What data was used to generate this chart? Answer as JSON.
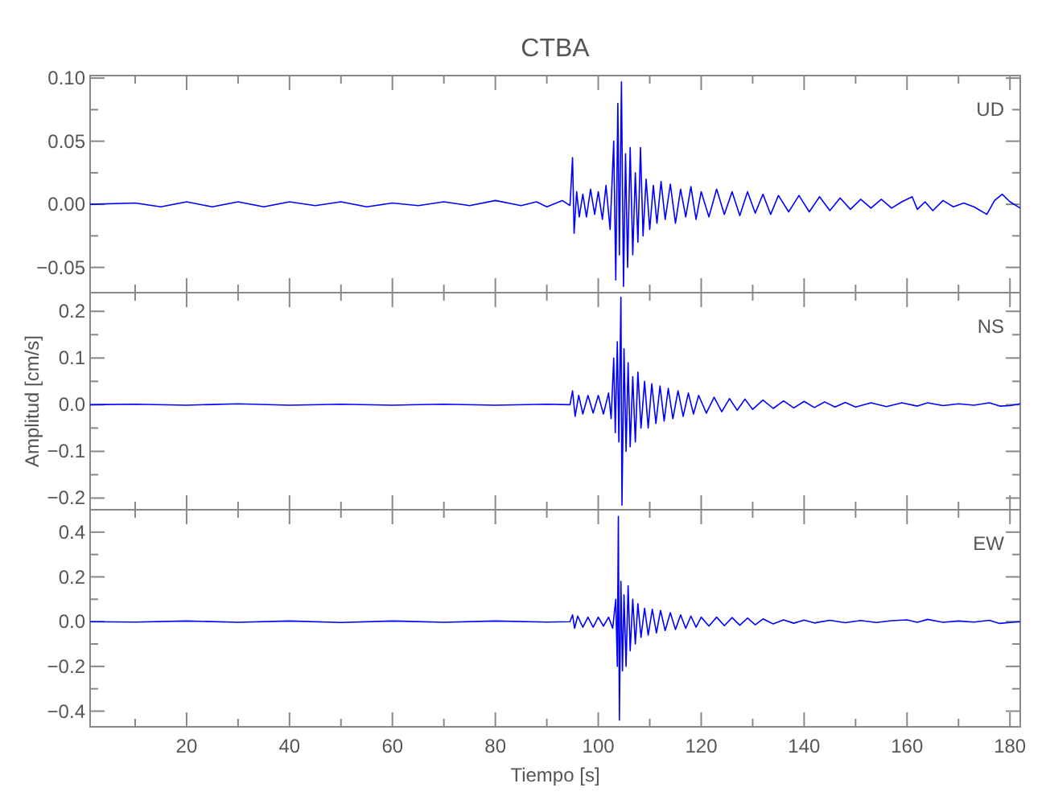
{
  "chart_data": [
    {
      "type": "line",
      "title": "CTBA",
      "annotations": [
        "UD"
      ],
      "tick_labels": "y",
      "grid": false,
      "xlim": [
        1.25,
        182
      ],
      "xticks": [
        {
          "value": 10,
          "label": null
        },
        20,
        {
          "value": 30,
          "label": null
        },
        40,
        {
          "value": 50,
          "label": null
        },
        60,
        {
          "value": 70,
          "label": null
        },
        80,
        {
          "value": 90,
          "label": null
        },
        100,
        {
          "value": 110,
          "label": null
        },
        120,
        {
          "value": 130,
          "label": null
        },
        140,
        {
          "value": 150,
          "label": null
        },
        160,
        {
          "value": 170,
          "label": null
        },
        180
      ],
      "ylim": [
        -0.07,
        0.102
      ],
      "yticks": [
        {
          "value": -0.05,
          "label": "−0.05"
        },
        {
          "value": -0.025,
          "label": null
        },
        {
          "value": 0,
          "label": "0.00"
        },
        {
          "value": 0.025,
          "label": null
        },
        {
          "value": 0.05,
          "label": "0.05"
        },
        {
          "value": 0.075,
          "label": null
        },
        {
          "value": 0.1,
          "label": "0.10"
        }
      ],
      "series": [
        {
          "color": "#0000ff",
          "x": [
            1.25,
            10,
            15,
            20,
            25,
            30,
            35,
            40,
            45,
            50,
            55,
            60,
            65,
            70,
            75,
            80,
            85,
            88,
            90,
            93,
            94.5,
            95,
            95.3,
            95.8,
            96.3,
            97,
            97.7,
            98.5,
            99.3,
            100,
            100.8,
            101.5,
            102.3,
            103,
            103.4,
            103.8,
            104.1,
            104.5,
            104.9,
            105.3,
            105.7,
            106.2,
            106.7,
            107.2,
            107.7,
            108.2,
            108.7,
            109.3,
            110,
            110.7,
            111.4,
            112.2,
            113,
            114,
            115,
            116,
            117,
            118,
            119,
            120,
            121.5,
            123,
            124.5,
            126,
            127.5,
            129,
            130.5,
            132,
            133.5,
            135,
            137,
            139,
            141,
            143,
            145,
            147,
            149,
            151,
            153,
            155,
            157,
            159,
            161,
            162,
            163.5,
            165,
            167,
            169,
            171,
            173,
            175.5,
            177,
            178.5,
            180,
            182
          ],
          "values": [
            0,
            0.001,
            -0.002,
            0.002,
            -0.002,
            0.002,
            -0.002,
            0.002,
            -0.001,
            0.002,
            -0.002,
            0.001,
            -0.001,
            0.002,
            -0.001,
            0.003,
            -0.001,
            0.002,
            -0.002,
            0.003,
            -0.001,
            0.037,
            -0.023,
            0.01,
            -0.01,
            0.008,
            -0.01,
            0.012,
            -0.008,
            0.01,
            -0.012,
            0.015,
            -0.02,
            0.05,
            -0.06,
            0.08,
            -0.04,
            0.097,
            -0.065,
            0.04,
            -0.05,
            0.045,
            -0.04,
            0.025,
            -0.03,
            0.045,
            -0.025,
            0.02,
            -0.02,
            0.015,
            -0.015,
            0.018,
            -0.012,
            0.016,
            -0.015,
            0.012,
            -0.01,
            0.014,
            -0.012,
            0.01,
            -0.01,
            0.012,
            -0.008,
            0.01,
            -0.009,
            0.01,
            -0.007,
            0.008,
            -0.008,
            0.007,
            -0.006,
            0.007,
            -0.006,
            0.006,
            -0.005,
            0.005,
            -0.004,
            0.004,
            -0.003,
            0.004,
            -0.003,
            0.002,
            0.006,
            -0.004,
            0.002,
            -0.005,
            0.003,
            -0.002,
            0.001,
            -0.002,
            -0.008,
            0.003,
            0.008,
            0.002,
            -0.003
          ]
        }
      ]
    },
    {
      "type": "line",
      "ylabel": "Amplitud [cm/s]",
      "annotations": [
        "NS"
      ],
      "tick_labels": "y",
      "grid": false,
      "xlim": [
        1.25,
        182
      ],
      "xticks": [
        {
          "value": 10,
          "label": null
        },
        20,
        {
          "value": 30,
          "label": null
        },
        40,
        {
          "value": 50,
          "label": null
        },
        60,
        {
          "value": 70,
          "label": null
        },
        80,
        {
          "value": 90,
          "label": null
        },
        100,
        {
          "value": 110,
          "label": null
        },
        120,
        {
          "value": 130,
          "label": null
        },
        140,
        {
          "value": 150,
          "label": null
        },
        160,
        {
          "value": 170,
          "label": null
        },
        180
      ],
      "ylim": [
        -0.225,
        0.24
      ],
      "yticks": [
        {
          "value": -0.2,
          "label": "−0.2"
        },
        {
          "value": -0.15,
          "label": null
        },
        {
          "value": -0.1,
          "label": "−0.1"
        },
        {
          "value": -0.05,
          "label": null
        },
        {
          "value": 0,
          "label": "0.0"
        },
        {
          "value": 0.05,
          "label": null
        },
        {
          "value": 0.1,
          "label": "0.1"
        },
        {
          "value": 0.15,
          "label": null
        },
        {
          "value": 0.2,
          "label": "0.2"
        }
      ],
      "series": [
        {
          "color": "#0000ff",
          "x": [
            1.25,
            10,
            20,
            30,
            40,
            50,
            60,
            70,
            80,
            90,
            94.5,
            95,
            95.5,
            96.2,
            97,
            98,
            99,
            100,
            101,
            102,
            102.5,
            103,
            103.3,
            103.7,
            104,
            104.4,
            104.6,
            105,
            105.4,
            105.8,
            106.2,
            106.7,
            107.2,
            107.7,
            108.3,
            109,
            109.7,
            110.4,
            111.2,
            112,
            112.8,
            113.6,
            114.5,
            115.5,
            116.5,
            117.5,
            118.5,
            119.5,
            121,
            122.5,
            124,
            125.5,
            127,
            128.5,
            130,
            132,
            134,
            136,
            138,
            140,
            142,
            144,
            146,
            148,
            150,
            153,
            156,
            159,
            162,
            164,
            167,
            170,
            173,
            176,
            178,
            180,
            182
          ],
          "values": [
            0,
            0.001,
            -0.001,
            0.002,
            -0.001,
            0.001,
            -0.001,
            0.001,
            -0.001,
            0.001,
            0,
            0.03,
            -0.025,
            0.02,
            -0.02,
            0.02,
            -0.018,
            0.02,
            -0.02,
            0.025,
            -0.03,
            0.1,
            -0.06,
            0.135,
            -0.08,
            0.23,
            -0.215,
            0.12,
            -0.1,
            0.09,
            -0.09,
            0.06,
            -0.08,
            0.07,
            -0.05,
            0.05,
            -0.05,
            0.045,
            -0.04,
            0.04,
            -0.035,
            0.035,
            -0.03,
            0.03,
            -0.025,
            0.025,
            -0.02,
            0.02,
            -0.018,
            0.016,
            -0.015,
            0.013,
            -0.012,
            0.012,
            -0.01,
            0.01,
            -0.008,
            0.008,
            -0.007,
            0.007,
            -0.006,
            0.006,
            -0.005,
            0.005,
            -0.005,
            0.004,
            -0.004,
            0.004,
            -0.003,
            0.004,
            -0.002,
            0.002,
            -0.001,
            0.004,
            -0.003,
            -0.002,
            0.002
          ]
        }
      ]
    },
    {
      "type": "line",
      "xlabel": "Tiempo [s]",
      "annotations": [
        "EW"
      ],
      "grid": false,
      "xlim": [
        1.25,
        182
      ],
      "xticks": [
        {
          "value": 10,
          "label": null
        },
        20,
        {
          "value": 30,
          "label": null
        },
        40,
        {
          "value": 50,
          "label": null
        },
        60,
        {
          "value": 70,
          "label": null
        },
        80,
        {
          "value": 90,
          "label": null
        },
        100,
        {
          "value": 110,
          "label": null
        },
        120,
        {
          "value": 130,
          "label": null
        },
        140,
        {
          "value": 150,
          "label": null
        },
        160,
        {
          "value": 170,
          "label": null
        },
        180
      ],
      "ylim": [
        -0.47,
        0.5
      ],
      "yticks": [
        {
          "value": -0.4,
          "label": "−0.4"
        },
        {
          "value": -0.3,
          "label": null
        },
        {
          "value": -0.2,
          "label": "−0.2"
        },
        {
          "value": -0.1,
          "label": null
        },
        {
          "value": 0,
          "label": "0.0"
        },
        {
          "value": 0.1,
          "label": null
        },
        {
          "value": 0.2,
          "label": "0.2"
        },
        {
          "value": 0.3,
          "label": null
        },
        {
          "value": 0.4,
          "label": "0.4"
        }
      ],
      "series": [
        {
          "color": "#0000ff",
          "x": [
            1.25,
            10,
            20,
            30,
            40,
            50,
            60,
            70,
            80,
            90,
            94.5,
            95,
            95.4,
            96,
            97,
            98,
            99,
            100,
            101,
            102,
            102.8,
            103.4,
            103.7,
            103.9,
            104.1,
            104.4,
            104.7,
            105,
            105.4,
            105.8,
            106.2,
            106.7,
            107.2,
            107.7,
            108.3,
            109,
            109.7,
            110.5,
            111.3,
            112.1,
            113,
            114,
            115,
            116,
            117,
            118,
            119,
            120,
            121.5,
            123,
            124.5,
            126,
            127.5,
            129,
            130.5,
            132,
            134,
            136,
            138,
            140,
            142,
            145,
            148,
            151,
            154,
            157,
            160,
            162,
            164,
            167,
            170,
            173,
            176,
            178,
            180,
            182
          ],
          "values": [
            0,
            -0.002,
            0.003,
            -0.003,
            0.003,
            -0.004,
            0.003,
            -0.003,
            0.003,
            -0.002,
            0,
            0.03,
            -0.03,
            0.025,
            -0.025,
            0.02,
            -0.025,
            0.02,
            -0.02,
            0.02,
            -0.03,
            0.1,
            -0.2,
            0.47,
            -0.44,
            0.18,
            -0.22,
            0.12,
            -0.2,
            0.16,
            -0.13,
            0.1,
            -0.1,
            0.08,
            -0.07,
            0.06,
            -0.06,
            0.055,
            -0.05,
            0.05,
            -0.04,
            0.04,
            -0.035,
            0.03,
            -0.03,
            0.025,
            -0.025,
            0.02,
            -0.02,
            0.02,
            -0.018,
            0.018,
            -0.016,
            0.016,
            -0.014,
            0.012,
            -0.01,
            0.008,
            -0.007,
            0.007,
            -0.006,
            0.006,
            -0.005,
            0.005,
            -0.004,
            0.004,
            0.008,
            -0.003,
            0.01,
            -0.003,
            0.003,
            -0.002,
            0.006,
            -0.008,
            -0.004,
            0
          ]
        }
      ]
    }
  ]
}
